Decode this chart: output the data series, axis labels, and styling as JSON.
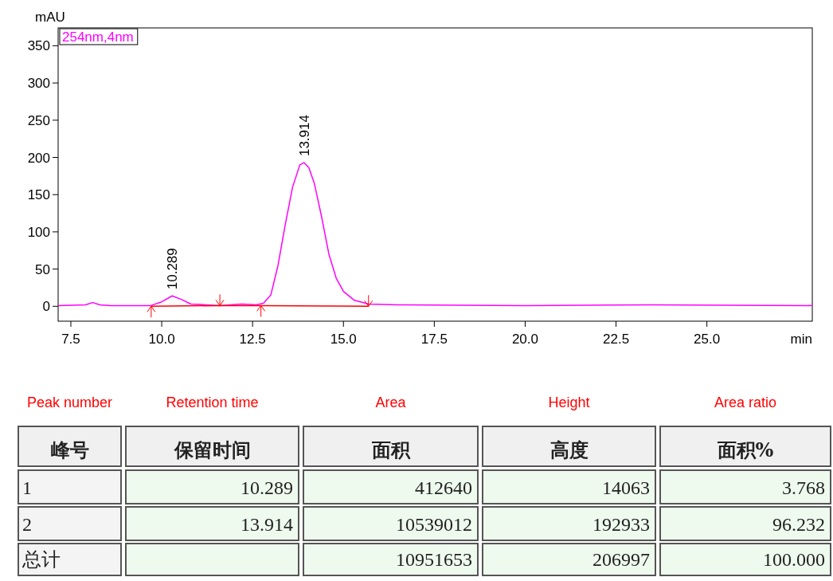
{
  "chart_data": [
    {
      "type": "line",
      "xlabel": "min",
      "ylabel": "mAU",
      "xlim": [
        7.15,
        27.9
      ],
      "ylim": [
        -20,
        374
      ],
      "xticks": [
        7.5,
        {
          "value": 10,
          "label": "10.0"
        },
        12.5,
        {
          "value": 15,
          "label": "15.0"
        },
        17.5,
        {
          "value": 20,
          "label": "20.0"
        },
        22.5,
        {
          "value": 25,
          "label": "25.0"
        }
      ],
      "yticks": [
        0,
        50,
        100,
        150,
        200,
        250,
        300,
        350
      ],
      "legend": "top left",
      "marker": "none",
      "line_style": "solid",
      "grid": false,
      "series": [
        {
          "name": "254nm,4nm",
          "color": "#ff00ff",
          "x": [
            7.15,
            7.9,
            8.1,
            8.3,
            8.6,
            9.7,
            10.0,
            10.289,
            10.55,
            10.8,
            11.2,
            11.6,
            12.2,
            12.6,
            12.8,
            13.0,
            13.2,
            13.4,
            13.6,
            13.8,
            13.914,
            14.05,
            14.2,
            14.4,
            14.6,
            14.8,
            15.0,
            15.3,
            15.7,
            16.5,
            20,
            23.5,
            27.9
          ],
          "values": [
            1,
            2,
            5,
            2,
            1,
            1,
            6,
            14,
            9,
            3,
            2,
            1,
            3,
            2,
            4,
            15,
            55,
            110,
            160,
            190,
            193,
            186,
            165,
            120,
            70,
            38,
            20,
            8,
            3,
            2,
            1,
            2,
            1
          ]
        },
        {
          "color": "#ff0000",
          "x": [
            9.71,
            11.6,
            12.73,
            15.69
          ],
          "values": [
            0,
            1,
            1,
            0
          ]
        }
      ],
      "annotations": [
        {
          "text": "10.289",
          "x": 10.289,
          "y": 14
        },
        {
          "text": "13.914",
          "x": 13.914,
          "y": 193
        }
      ]
    },
    {
      "type": "other",
      "annotations": [
        "Peak number",
        "Retention time",
        "Area",
        "Height",
        "Area ratio",
        "峰号",
        "保留时间",
        "面积",
        "高度",
        "面积%",
        "1",
        "10.289",
        "412640",
        "14063",
        "3.768",
        "2",
        "13.914",
        "10539012",
        "192933",
        "96.232",
        "总计",
        null,
        "10951653",
        "206997",
        "100.000"
      ]
    }
  ]
}
